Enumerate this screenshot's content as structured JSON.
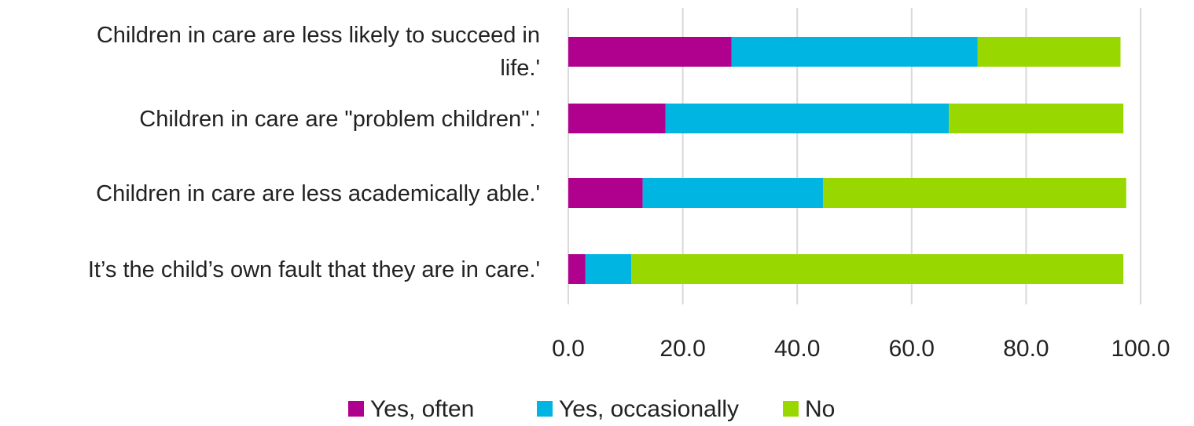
{
  "chart_data": {
    "type": "bar",
    "orientation": "horizontal",
    "stacked": true,
    "title": "",
    "xlabel": "",
    "ylabel": "",
    "xlim": [
      0,
      100
    ],
    "x_ticks": [
      "0.0",
      "20.0",
      "40.0",
      "60.0",
      "80.0",
      "100.0"
    ],
    "grid": "vertical",
    "legend_position": "bottom",
    "categories": [
      [
        "Children in care are less likely to succeed in",
        "life.'"
      ],
      [
        "Children in care are \"problem children\".'"
      ],
      [
        "Children in care are less academically able.'"
      ],
      [
        "It’s the child’s own fault that they are in care.'"
      ]
    ],
    "series": [
      {
        "name": "Yes, often",
        "color": "#B0008E",
        "values": [
          28.5,
          17.0,
          13.0,
          3.0
        ]
      },
      {
        "name": "Yes, occasionally",
        "color": "#00B5E2",
        "values": [
          43.0,
          49.5,
          31.5,
          8.0
        ]
      },
      {
        "name": "No",
        "color": "#99D700",
        "values": [
          25.0,
          30.5,
          53.0,
          86.0
        ]
      }
    ]
  }
}
